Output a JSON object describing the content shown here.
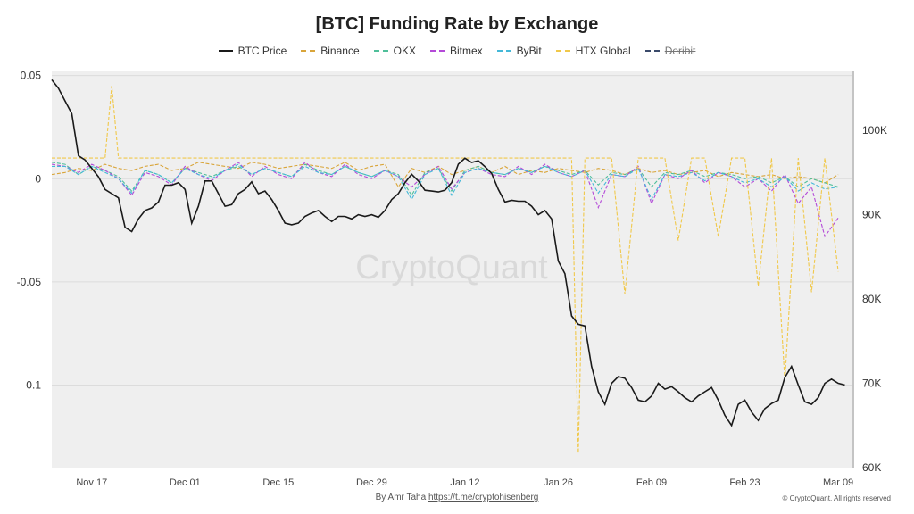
{
  "colors": {
    "btc_price": "#1a1a1a",
    "binance": "#d9a53a",
    "okx": "#4fbf9a",
    "bitmex": "#b44ad8",
    "bybit": "#44b8d8",
    "htx": "#f0c84a",
    "deribit": "#3a4a6a",
    "plot_bg": "#efefef"
  },
  "footer": {
    "by_text": "By Amr Taha",
    "link_text": "https://t.me/cryptohisenberg",
    "copyright": "© CryptoQuant. All rights reserved"
  },
  "watermark": "CryptoQuant",
  "chart_data": {
    "type": "line",
    "title": "[BTC] Funding Rate by Exchange",
    "legend_position": "top-center",
    "grid": true,
    "x_tick_labels": [
      "Nov 17",
      "Dec 01",
      "Dec 15",
      "Dec 29",
      "Jan 12",
      "Jan 26",
      "Feb 09",
      "Feb 23",
      "Mar 09"
    ],
    "x_tick_days": [
      6,
      20,
      34,
      48,
      62,
      76,
      90,
      104,
      118
    ],
    "x_range_days": [
      0,
      120
    ],
    "y_left": {
      "ylim": [
        -0.14,
        0.052
      ],
      "ticks": [
        0.05,
        0,
        -0.05,
        -0.1
      ],
      "tick_labels": [
        "0.05",
        "0",
        "-0.05",
        "-0.1"
      ]
    },
    "y_right": {
      "ylim": [
        60000,
        107000
      ],
      "ticks": [
        100000,
        90000,
        80000,
        70000,
        60000
      ],
      "tick_labels": [
        "100K",
        "90K",
        "80K",
        "70K",
        "60K"
      ]
    },
    "series": [
      {
        "name": "BTC Price",
        "axis": "right",
        "dashed": false,
        "key": "btc_price",
        "x": [
          0,
          1,
          2,
          3,
          4,
          5,
          6,
          7,
          8,
          9,
          10,
          11,
          12,
          13,
          14,
          15,
          16,
          17,
          18,
          19,
          20,
          21,
          22,
          23,
          24,
          25,
          26,
          27,
          28,
          29,
          30,
          31,
          32,
          33,
          34,
          35,
          36,
          37,
          38,
          39,
          40,
          41,
          42,
          43,
          44,
          45,
          46,
          47,
          48,
          49,
          50,
          51,
          52,
          53,
          54,
          55,
          56,
          57,
          58,
          59,
          60,
          61,
          62,
          63,
          64,
          65,
          66,
          67,
          68,
          69,
          70,
          71,
          72,
          73,
          74,
          75,
          76,
          77,
          78,
          79,
          80,
          81,
          82,
          83,
          84,
          85,
          86,
          87,
          88,
          89,
          90,
          91,
          92,
          93,
          94,
          95,
          96,
          97,
          98,
          99,
          100,
          101,
          102,
          103,
          104,
          105,
          106,
          107,
          108,
          109,
          110,
          111,
          112,
          113,
          114,
          115,
          116,
          117,
          118,
          119
        ],
        "y": [
          106000,
          105000,
          103500,
          102000,
          97000,
          96500,
          95500,
          94500,
          93000,
          92500,
          92000,
          88500,
          88000,
          89500,
          90500,
          90800,
          91500,
          93500,
          93500,
          93800,
          93000,
          89000,
          91000,
          94000,
          94000,
          92500,
          91000,
          91200,
          92500,
          93000,
          93900,
          92500,
          92800,
          91800,
          90500,
          89000,
          88800,
          89000,
          89800,
          90200,
          90500,
          89800,
          89200,
          89800,
          89800,
          89500,
          90000,
          89800,
          90000,
          89700,
          90500,
          91800,
          92500,
          93800,
          94800,
          94000,
          92900,
          92800,
          92700,
          92900,
          93800,
          96000,
          96700,
          96200,
          96400,
          95700,
          94900,
          93000,
          91500,
          91700,
          91600,
          91600,
          91000,
          90000,
          90500,
          89500,
          84500,
          83000,
          78000,
          77000,
          76800,
          72000,
          69000,
          67500,
          70000,
          70800,
          70600,
          69500,
          68000,
          67800,
          68500,
          70000,
          69300,
          69600,
          69000,
          68300,
          67800,
          68500,
          69000,
          69500,
          68000,
          66200,
          65000,
          67500,
          68000,
          66600,
          65600,
          67000,
          67600,
          68000,
          70700,
          72000,
          69800,
          67800,
          67500,
          68300,
          70000,
          70500,
          70000,
          69800
        ]
      },
      {
        "name": "Binance",
        "axis": "left",
        "dashed": true,
        "key": "binance",
        "x": [
          0,
          2,
          4,
          6,
          8,
          10,
          12,
          14,
          16,
          18,
          20,
          22,
          24,
          26,
          28,
          30,
          32,
          34,
          36,
          38,
          40,
          42,
          44,
          46,
          48,
          50,
          52,
          54,
          56,
          58,
          60,
          62,
          64,
          66,
          68,
          70,
          72,
          74,
          76,
          78,
          80,
          82,
          84,
          86,
          88,
          90,
          92,
          94,
          96,
          98,
          100,
          102,
          104,
          106,
          108,
          110,
          112,
          114,
          116,
          118
        ],
        "y": [
          0.002,
          0.003,
          0.005,
          0.004,
          0.007,
          0.005,
          0.004,
          0.006,
          0.007,
          0.004,
          0.005,
          0.008,
          0.007,
          0.006,
          0.005,
          0.008,
          0.007,
          0.005,
          0.006,
          0.007,
          0.006,
          0.005,
          0.008,
          0.004,
          0.006,
          0.007,
          -0.004,
          0.005,
          0.003,
          0.006,
          0.002,
          0.004,
          0.006,
          0.003,
          0.006,
          0.002,
          0.004,
          0.003,
          0.005,
          0.004,
          0.003,
          0.005,
          0.004,
          0.002,
          0.005,
          0.003,
          0.004,
          0.002,
          0.003,
          0.004,
          0.001,
          0.003,
          0.002,
          0.001,
          0.002,
          0.0,
          0.001,
          0.0,
          -0.002,
          0.002
        ]
      },
      {
        "name": "OKX",
        "axis": "left",
        "dashed": true,
        "key": "okx",
        "x": [
          0,
          2,
          4,
          6,
          8,
          10,
          12,
          14,
          16,
          18,
          20,
          22,
          24,
          26,
          28,
          30,
          32,
          34,
          36,
          38,
          40,
          42,
          44,
          46,
          48,
          50,
          52,
          54,
          56,
          58,
          60,
          62,
          64,
          66,
          68,
          70,
          72,
          74,
          76,
          78,
          80,
          82,
          84,
          86,
          88,
          90,
          92,
          94,
          96,
          98,
          100,
          102,
          104,
          106,
          108,
          110,
          112,
          114,
          116,
          118
        ],
        "y": [
          0.008,
          0.007,
          0.002,
          0.006,
          0.004,
          0.001,
          -0.006,
          0.004,
          0.002,
          -0.002,
          0.005,
          0.003,
          0.001,
          0.004,
          0.006,
          0.002,
          0.005,
          0.003,
          0.001,
          0.007,
          0.004,
          0.002,
          0.006,
          0.003,
          0.001,
          0.004,
          0.002,
          -0.008,
          0.003,
          0.005,
          -0.006,
          0.004,
          0.006,
          0.003,
          0.002,
          0.005,
          0.003,
          0.006,
          0.004,
          0.002,
          0.004,
          -0.003,
          0.003,
          0.002,
          0.005,
          -0.004,
          0.003,
          0.002,
          0.004,
          0.001,
          0.003,
          0.002,
          0.0,
          0.001,
          -0.002,
          0.001,
          -0.004,
          0.0,
          -0.002,
          -0.004
        ]
      },
      {
        "name": "Bitmex",
        "axis": "left",
        "dashed": true,
        "key": "bitmex",
        "x": [
          0,
          2,
          4,
          6,
          8,
          10,
          12,
          14,
          16,
          18,
          20,
          22,
          24,
          26,
          28,
          30,
          32,
          34,
          36,
          38,
          40,
          42,
          44,
          46,
          48,
          50,
          52,
          54,
          56,
          58,
          60,
          62,
          64,
          66,
          68,
          70,
          72,
          74,
          76,
          78,
          80,
          82,
          84,
          86,
          88,
          90,
          92,
          94,
          96,
          98,
          100,
          102,
          104,
          106,
          108,
          110,
          112,
          114,
          116,
          118
        ],
        "y": [
          0.007,
          0.006,
          0.003,
          0.007,
          0.004,
          0.0,
          -0.008,
          0.003,
          0.001,
          -0.003,
          0.006,
          0.002,
          -0.001,
          0.004,
          0.008,
          0.001,
          0.006,
          0.002,
          0.0,
          0.008,
          0.003,
          0.001,
          0.007,
          0.002,
          0.0,
          0.004,
          0.001,
          -0.004,
          0.002,
          0.006,
          -0.005,
          0.003,
          0.005,
          0.002,
          0.001,
          0.006,
          0.002,
          0.007,
          0.003,
          0.001,
          0.004,
          -0.014,
          0.002,
          0.001,
          0.006,
          -0.012,
          0.002,
          0.0,
          0.004,
          -0.002,
          0.003,
          0.001,
          -0.004,
          0.0,
          -0.006,
          0.002,
          -0.012,
          -0.004,
          -0.028,
          -0.019
        ]
      },
      {
        "name": "ByBit",
        "axis": "left",
        "dashed": true,
        "key": "bybit",
        "x": [
          0,
          2,
          4,
          6,
          8,
          10,
          12,
          14,
          16,
          18,
          20,
          22,
          24,
          26,
          28,
          30,
          32,
          34,
          36,
          38,
          40,
          42,
          44,
          46,
          48,
          50,
          52,
          54,
          56,
          58,
          60,
          62,
          64,
          66,
          68,
          70,
          72,
          74,
          76,
          78,
          80,
          82,
          84,
          86,
          88,
          90,
          92,
          94,
          96,
          98,
          100,
          102,
          104,
          106,
          108,
          110,
          112,
          114,
          116,
          118
        ],
        "y": [
          0.006,
          0.006,
          0.002,
          0.006,
          0.003,
          0.0,
          -0.007,
          0.004,
          0.002,
          -0.002,
          0.005,
          0.002,
          0.0,
          0.004,
          0.007,
          0.002,
          0.005,
          0.003,
          0.001,
          0.006,
          0.003,
          0.002,
          0.006,
          0.003,
          0.001,
          0.004,
          0.001,
          -0.01,
          0.002,
          0.005,
          -0.008,
          0.003,
          0.005,
          0.003,
          0.002,
          0.005,
          0.003,
          0.006,
          0.003,
          0.001,
          0.004,
          -0.007,
          0.002,
          0.001,
          0.005,
          -0.01,
          0.002,
          0.001,
          0.003,
          -0.001,
          0.003,
          0.001,
          -0.002,
          0.0,
          -0.004,
          0.001,
          -0.006,
          -0.002,
          -0.005,
          -0.004
        ]
      },
      {
        "name": "HTX Global",
        "axis": "left",
        "dashed": true,
        "key": "htx",
        "x": [
          0,
          2,
          4,
          6,
          8,
          9,
          10,
          12,
          14,
          16,
          18,
          20,
          22,
          24,
          26,
          28,
          30,
          32,
          34,
          36,
          38,
          40,
          42,
          44,
          46,
          48,
          50,
          52,
          54,
          56,
          58,
          60,
          62,
          64,
          66,
          68,
          70,
          72,
          74,
          76,
          78,
          79,
          80,
          82,
          84,
          86,
          88,
          90,
          92,
          94,
          96,
          98,
          100,
          102,
          104,
          106,
          108,
          110,
          112,
          114,
          116,
          118
        ],
        "y": [
          0.01,
          0.01,
          0.01,
          0.01,
          0.01,
          0.045,
          0.01,
          0.01,
          0.01,
          0.01,
          0.01,
          0.01,
          0.01,
          0.01,
          0.01,
          0.01,
          0.01,
          0.01,
          0.01,
          0.01,
          0.01,
          0.01,
          0.01,
          0.01,
          0.01,
          0.01,
          0.01,
          0.01,
          0.01,
          0.01,
          0.01,
          0.01,
          0.01,
          0.01,
          0.01,
          0.01,
          0.01,
          0.01,
          0.01,
          0.01,
          0.01,
          -0.133,
          0.01,
          0.01,
          0.01,
          -0.056,
          0.01,
          0.01,
          0.01,
          -0.03,
          0.01,
          0.01,
          -0.028,
          0.01,
          0.01,
          -0.052,
          0.01,
          -0.098,
          0.01,
          -0.055,
          0.01,
          -0.045
        ]
      },
      {
        "name": "Deribit",
        "axis": "left",
        "dashed": true,
        "hidden": true,
        "key": "deribit",
        "x": [],
        "y": []
      }
    ]
  }
}
